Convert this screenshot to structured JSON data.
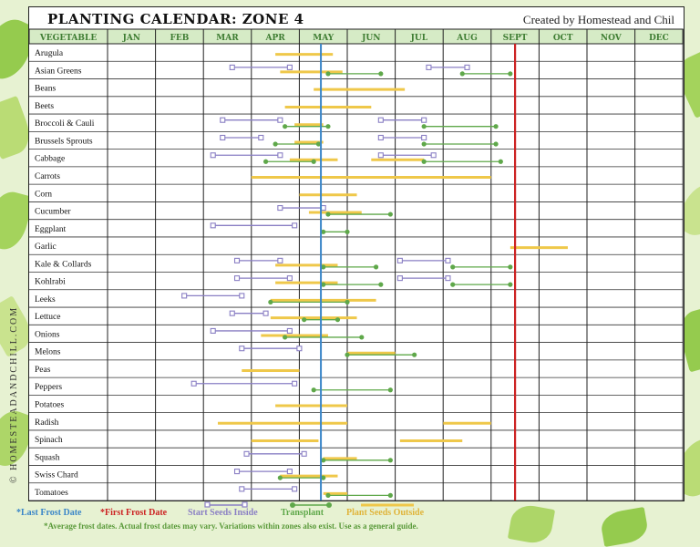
{
  "header": {
    "title": "PLANTING CALENDAR: ZONE 4",
    "credit": "Created by Homestead and Chil"
  },
  "copyright": "© HOMESTEADANDCHILL.COM",
  "legend": {
    "last_frost": "*Last Frost Date",
    "first_frost": "*First Frost Date",
    "start_seeds": "Start Seeds Inside",
    "transplant": "Transplant",
    "plant_seeds": "Plant Seeds Outside",
    "footnote": "*Average frost dates. Actual frost dates may vary. Variations within zones also exist. Use as a general guide."
  },
  "colors": {
    "start_seeds": "#8a7fc4",
    "transplant": "#5fa84a",
    "plant_seeds": "#efc84a",
    "last_frost": "#3a86c8",
    "first_frost": "#cc2222",
    "header_bg": "#d6ebc6",
    "header_text": "#3f7d33"
  },
  "chart_data": {
    "type": "table",
    "title": "PLANTING CALENDAR: ZONE 4",
    "month_header": "VEGETABLE",
    "months": [
      "JAN",
      "FEB",
      "MAR",
      "APR",
      "MAY",
      "JUN",
      "JUL",
      "AUG",
      "SEPT",
      "OCT",
      "NOV",
      "DEC"
    ],
    "last_frost_month": 4.45,
    "first_frost_month": 8.5,
    "vegetables": [
      {
        "name": "Arugula",
        "inside": [],
        "transplant": [],
        "outside": [
          [
            3.5,
            4.7
          ]
        ]
      },
      {
        "name": "Asian Greens",
        "inside": [
          [
            2.6,
            3.8
          ],
          [
            6.7,
            7.5
          ]
        ],
        "transplant": [
          [
            4.6,
            5.7
          ],
          [
            7.4,
            8.4
          ]
        ],
        "outside": [
          [
            3.6,
            4.9
          ]
        ]
      },
      {
        "name": "Beans",
        "inside": [],
        "transplant": [],
        "outside": [
          [
            4.3,
            6.2
          ]
        ]
      },
      {
        "name": "Beets",
        "inside": [],
        "transplant": [],
        "outside": [
          [
            3.7,
            5.5
          ]
        ]
      },
      {
        "name": "Broccoli & Cauli",
        "inside": [
          [
            2.4,
            3.6
          ],
          [
            5.7,
            6.6
          ]
        ],
        "transplant": [
          [
            3.7,
            4.6
          ],
          [
            6.6,
            8.1
          ]
        ],
        "outside": [
          [
            3.9,
            4.5
          ]
        ]
      },
      {
        "name": "Brussels Sprouts",
        "inside": [
          [
            2.4,
            3.2
          ],
          [
            5.7,
            6.6
          ]
        ],
        "transplant": [
          [
            3.5,
            4.4
          ],
          [
            6.6,
            8.1
          ]
        ],
        "outside": [
          [
            3.9,
            4.5
          ]
        ]
      },
      {
        "name": "Cabbage",
        "inside": [
          [
            2.2,
            3.6
          ],
          [
            5.7,
            6.8
          ]
        ],
        "transplant": [
          [
            3.3,
            4.3
          ],
          [
            6.6,
            8.2
          ]
        ],
        "outside": [
          [
            3.8,
            4.8
          ],
          [
            5.5,
            6.6
          ]
        ]
      },
      {
        "name": "Carrots",
        "inside": [],
        "transplant": [],
        "outside": [
          [
            3.0,
            8.0
          ]
        ]
      },
      {
        "name": "Corn",
        "inside": [],
        "transplant": [],
        "outside": [
          [
            4.0,
            5.2
          ]
        ]
      },
      {
        "name": "Cucumber",
        "inside": [
          [
            3.6,
            4.5
          ]
        ],
        "transplant": [
          [
            4.6,
            5.9
          ]
        ],
        "outside": [
          [
            4.2,
            5.3
          ]
        ]
      },
      {
        "name": "Eggplant",
        "inside": [
          [
            2.2,
            3.9
          ]
        ],
        "transplant": [
          [
            4.5,
            5.0
          ]
        ],
        "outside": []
      },
      {
        "name": "Garlic",
        "inside": [],
        "transplant": [],
        "outside": [
          [
            8.4,
            9.6
          ]
        ]
      },
      {
        "name": "Kale & Collards",
        "inside": [
          [
            2.7,
            3.6
          ],
          [
            6.1,
            7.1
          ]
        ],
        "transplant": [
          [
            4.5,
            5.6
          ],
          [
            7.2,
            8.4
          ]
        ],
        "outside": [
          [
            3.5,
            4.8
          ]
        ]
      },
      {
        "name": "Kohlrabi",
        "inside": [
          [
            2.7,
            3.8
          ],
          [
            6.1,
            7.1
          ]
        ],
        "transplant": [
          [
            4.5,
            5.7
          ],
          [
            7.2,
            8.4
          ]
        ],
        "outside": [
          [
            3.5,
            4.8
          ]
        ]
      },
      {
        "name": "Leeks",
        "inside": [
          [
            1.6,
            2.8
          ]
        ],
        "transplant": [
          [
            3.4,
            5.0
          ]
        ],
        "outside": [
          [
            3.4,
            5.6
          ]
        ]
      },
      {
        "name": "Lettuce",
        "inside": [
          [
            2.6,
            3.3
          ]
        ],
        "transplant": [
          [
            4.1,
            4.8
          ]
        ],
        "outside": [
          [
            3.4,
            5.2
          ]
        ]
      },
      {
        "name": "Onions",
        "inside": [
          [
            2.2,
            3.8
          ]
        ],
        "transplant": [
          [
            3.7,
            5.3
          ]
        ],
        "outside": [
          [
            3.2,
            4.6
          ]
        ]
      },
      {
        "name": "Melons",
        "inside": [
          [
            2.8,
            4.0
          ]
        ],
        "transplant": [
          [
            5.0,
            6.4
          ]
        ],
        "outside": [
          [
            5.0,
            6.0
          ]
        ]
      },
      {
        "name": "Peas",
        "inside": [],
        "transplant": [],
        "outside": [
          [
            2.8,
            4.0
          ]
        ]
      },
      {
        "name": "Peppers",
        "inside": [
          [
            1.8,
            3.9
          ]
        ],
        "transplant": [
          [
            4.3,
            5.9
          ]
        ],
        "outside": []
      },
      {
        "name": "Potatoes",
        "inside": [],
        "transplant": [],
        "outside": [
          [
            3.5,
            5.0
          ]
        ]
      },
      {
        "name": "Radish",
        "inside": [],
        "transplant": [],
        "outside": [
          [
            2.3,
            5.0
          ],
          [
            7.0,
            8.0
          ]
        ]
      },
      {
        "name": "Spinach",
        "inside": [],
        "transplant": [],
        "outside": [
          [
            3.0,
            4.4
          ],
          [
            6.1,
            7.4
          ]
        ]
      },
      {
        "name": "Squash",
        "inside": [
          [
            2.9,
            4.1
          ]
        ],
        "transplant": [
          [
            4.5,
            5.9
          ]
        ],
        "outside": [
          [
            4.5,
            5.2
          ]
        ]
      },
      {
        "name": "Swiss Chard",
        "inside": [
          [
            2.7,
            3.8
          ]
        ],
        "transplant": [
          [
            3.6,
            4.5
          ]
        ],
        "outside": [
          [
            3.6,
            4.8
          ]
        ]
      },
      {
        "name": "Tomatoes",
        "inside": [
          [
            2.8,
            3.9
          ]
        ],
        "transplant": [
          [
            4.6,
            5.9
          ]
        ],
        "outside": [
          [
            4.5,
            5.0
          ]
        ]
      }
    ]
  }
}
